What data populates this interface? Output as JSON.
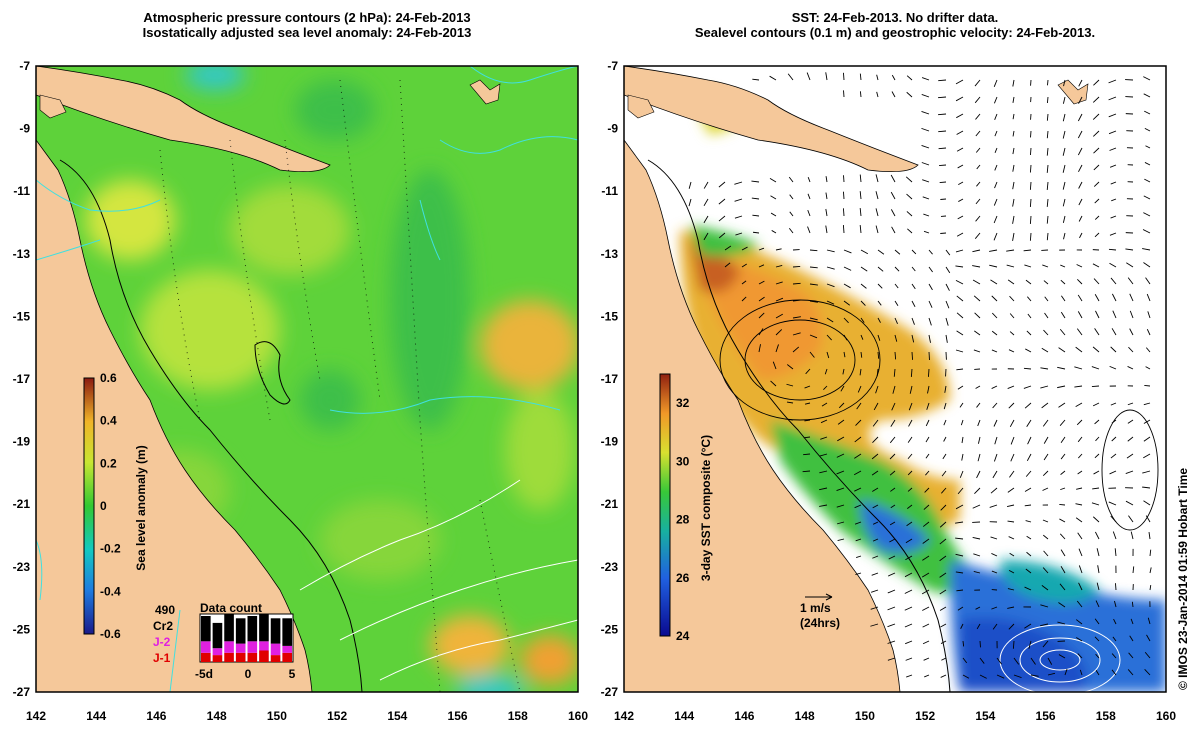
{
  "left_panel": {
    "title_line1": "Atmospheric pressure contours (2 hPa): 24-Feb-2013",
    "title_line2": "Isostatically adjusted sea level anomaly: 24-Feb-2013",
    "colorbar": {
      "label": "Sea level anomaly (m)",
      "ticks": [
        "0.6",
        "0.4",
        "0.2",
        "0",
        "-0.2",
        "-0.4",
        "-0.6"
      ],
      "range": [
        -0.6,
        0.6
      ]
    },
    "data_count": {
      "title": "Data count",
      "x_ticks": [
        "-5d",
        "0",
        "5"
      ],
      "satellites": [
        "490",
        "Cr2",
        "J-2",
        "J-1"
      ],
      "colors": {
        "490": "#000000",
        "Cr2": "#000000",
        "J-2": "#e020e0",
        "J-1": "#e00000"
      },
      "bars": [
        {
          "black": 0.55,
          "magenta": 0.25,
          "red": 0.2
        },
        {
          "black": 0.55,
          "magenta": 0.15,
          "red": 0.15
        },
        {
          "black": 0.6,
          "magenta": 0.25,
          "red": 0.2
        },
        {
          "black": 0.55,
          "magenta": 0.2,
          "red": 0.2
        },
        {
          "black": 0.55,
          "magenta": 0.25,
          "red": 0.2
        },
        {
          "black": 0.6,
          "magenta": 0.2,
          "red": 0.25
        },
        {
          "black": 0.55,
          "magenta": 0.25,
          "red": 0.15
        },
        {
          "black": 0.6,
          "magenta": 0.15,
          "red": 0.2
        }
      ]
    }
  },
  "right_panel": {
    "title_line1": "SST: 24-Feb-2013. No drifter data.",
    "title_line2": "Sealevel contours (0.1 m) and geostrophic velocity: 24-Feb-2013.",
    "colorbar": {
      "label": "3-day SST composite (°C)",
      "ticks": [
        "32",
        "30",
        "28",
        "26",
        "24"
      ],
      "range": [
        24,
        33
      ]
    },
    "velocity_legend": {
      "label": "1 m/s",
      "sublabel": "(24hrs)"
    }
  },
  "axes": {
    "x_ticks": [
      "142",
      "144",
      "146",
      "148",
      "150",
      "152",
      "154",
      "156",
      "158",
      "160"
    ],
    "y_ticks": [
      "-7",
      "-9",
      "-11",
      "-13",
      "-15",
      "-17",
      "-19",
      "-21",
      "-23",
      "-25",
      "-27"
    ],
    "lon_range": [
      142,
      160
    ],
    "lat_range": [
      -27,
      -7
    ]
  },
  "credit": "© IMOS 23-Jan-2014 01:59 Hobart Time",
  "colors": {
    "land": "#f5c89a",
    "ocean_green": "#5ed23a",
    "pressure_contour": "#40e0e0"
  }
}
